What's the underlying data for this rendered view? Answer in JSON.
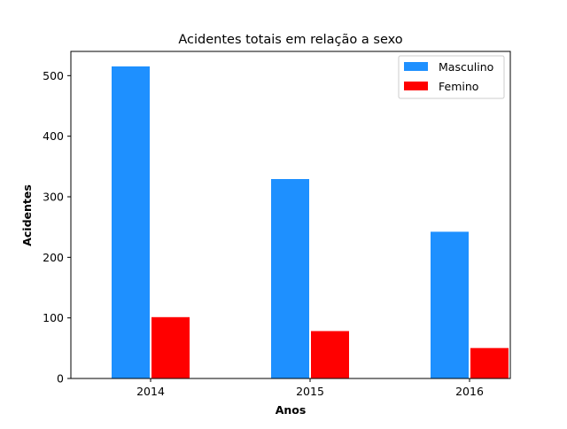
{
  "chart_data": {
    "type": "bar",
    "title": "Acidentes totais em relação a sexo",
    "xlabel": "Anos",
    "ylabel": "Acidentes",
    "categories": [
      "2014",
      "2015",
      "2016"
    ],
    "series": [
      {
        "name": "Masculino",
        "values": [
          516,
          330,
          243
        ],
        "color": "#1e90ff"
      },
      {
        "name": "Femino",
        "values": [
          102,
          79,
          51
        ],
        "color": "#ff0000"
      }
    ],
    "ylim": [
      0,
      540
    ],
    "yticks": [
      0,
      100,
      200,
      300,
      400,
      500
    ],
    "grid": false,
    "legend_position": "top-right"
  }
}
